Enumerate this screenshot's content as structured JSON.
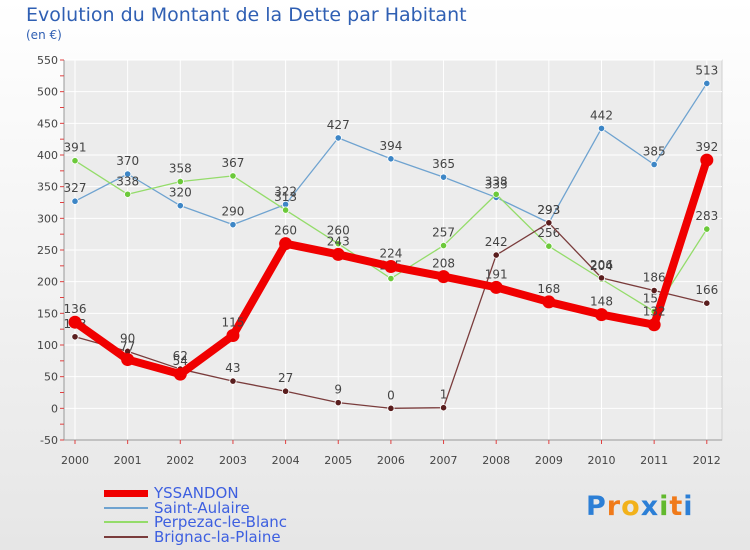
{
  "header": {
    "title": "Evolution du Montant de la Dette par Habitant",
    "subtitle": "(en €)"
  },
  "logo": {
    "text": "Proxiti",
    "letters": [
      "P",
      "r",
      "o",
      "x",
      "i",
      "t",
      "i"
    ],
    "colors": [
      "#2c7fd6",
      "#f07a1a",
      "#f2b21b",
      "#2c7fd6",
      "#62b92e",
      "#f07a1a",
      "#2c7fd6"
    ]
  },
  "chart_data": {
    "type": "line",
    "title": "Evolution du Montant de la Dette par Habitant",
    "ylabel": "(en €)",
    "xlabel": "",
    "categories": [
      "2000",
      "2001",
      "2002",
      "2003",
      "2004",
      "2005",
      "2006",
      "2007",
      "2008",
      "2009",
      "2010",
      "2011",
      "2012"
    ],
    "ylim": [
      -50,
      550
    ],
    "yticks": [
      -50,
      0,
      50,
      100,
      150,
      200,
      250,
      300,
      350,
      400,
      450,
      500,
      550
    ],
    "grid": true,
    "legend": "bottom-left",
    "series": [
      {
        "name": "Saint-Aulaire",
        "color": "#6fa3d0",
        "marker": "#3d86c6",
        "width": 1.3,
        "values": [
          327,
          370,
          320,
          290,
          322,
          427,
          394,
          365,
          333,
          293,
          442,
          385,
          513
        ]
      },
      {
        "name": "Perpezac-le-Blanc",
        "color": "#94dc6a",
        "marker": "#6cc93a",
        "width": 1.3,
        "values": [
          391,
          338,
          358,
          367,
          313,
          260,
          205,
          257,
          338,
          256,
          204,
          153,
          283
        ]
      },
      {
        "name": "Brignac-la-Plaine",
        "color": "#7a3c3c",
        "marker": "#5a1e1e",
        "width": 1.3,
        "values": [
          113,
          90,
          62,
          43,
          27,
          9,
          0,
          1,
          242,
          293,
          206,
          186,
          166
        ]
      },
      {
        "name": "YSSANDON",
        "color": "#f00000",
        "marker": "#f00000",
        "width": 8,
        "values": [
          136,
          77,
          54,
          115,
          260,
          243,
          224,
          208,
          191,
          168,
          148,
          132,
          392
        ]
      }
    ]
  }
}
